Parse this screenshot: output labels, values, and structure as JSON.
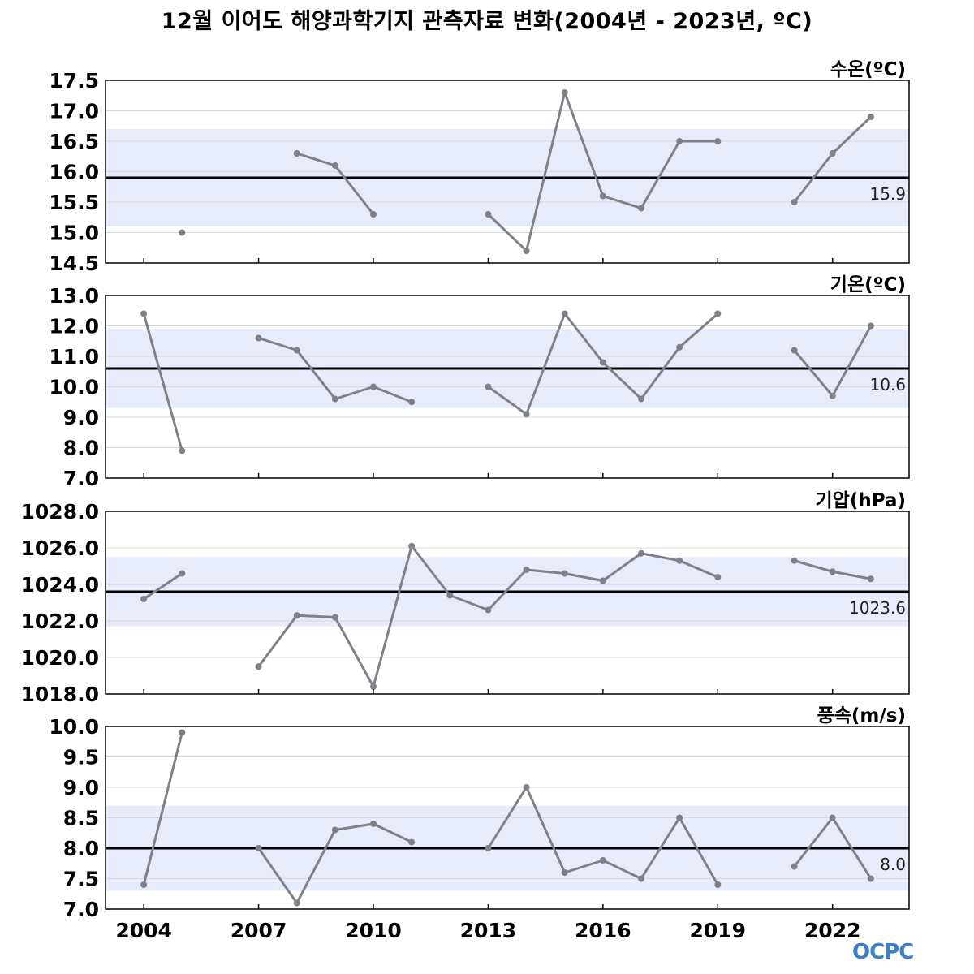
{
  "title": "12월 이어도 해양과학기지 관측자료 변화(2004년 - 2023년, ºC)",
  "logo_text": "OCPC",
  "colors": {
    "line": "#808088",
    "mean_line": "#000000",
    "band": "#e8ebfb",
    "grid": "#d8d8d8",
    "frame": "#000000"
  },
  "chart_data": [
    {
      "type": "line",
      "label": "수온(ºC)",
      "x": [
        2004,
        2005,
        2006,
        2007,
        2008,
        2009,
        2010,
        2011,
        2012,
        2013,
        2014,
        2015,
        2016,
        2017,
        2018,
        2019,
        2020,
        2021,
        2022,
        2023
      ],
      "values": [
        null,
        15.0,
        null,
        null,
        16.3,
        16.1,
        15.3,
        null,
        null,
        15.3,
        14.7,
        17.3,
        15.6,
        15.4,
        16.5,
        16.5,
        null,
        15.5,
        16.3,
        16.9
      ],
      "mean": 15.9,
      "mean_label": "15.9",
      "band": [
        15.1,
        16.7
      ],
      "ylim": [
        14.5,
        17.5
      ],
      "yticks": [
        14.5,
        15.0,
        15.5,
        16.0,
        16.5,
        17.0,
        17.5
      ],
      "ytick_labels": [
        "14.5",
        "15.0",
        "15.5",
        "16.0",
        "16.5",
        "17.0",
        "17.5"
      ]
    },
    {
      "type": "line",
      "label": "기온(ºC)",
      "x": [
        2004,
        2005,
        2006,
        2007,
        2008,
        2009,
        2010,
        2011,
        2012,
        2013,
        2014,
        2015,
        2016,
        2017,
        2018,
        2019,
        2020,
        2021,
        2022,
        2023
      ],
      "values": [
        12.4,
        7.9,
        null,
        11.6,
        11.2,
        9.6,
        10.0,
        9.5,
        null,
        10.0,
        9.1,
        12.4,
        10.8,
        9.6,
        11.3,
        12.4,
        null,
        11.2,
        9.7,
        12.0
      ],
      "mean": 10.6,
      "mean_label": "10.6",
      "band": [
        9.3,
        11.9
      ],
      "ylim": [
        7.0,
        13.0
      ],
      "yticks": [
        7,
        8,
        9,
        10,
        11,
        12,
        13
      ],
      "ytick_labels": [
        "7.0",
        "8.0",
        "9.0",
        "10.0",
        "11.0",
        "12.0",
        "13.0"
      ]
    },
    {
      "type": "line",
      "label": "기압(hPa)",
      "x": [
        2004,
        2005,
        2006,
        2007,
        2008,
        2009,
        2010,
        2011,
        2012,
        2013,
        2014,
        2015,
        2016,
        2017,
        2018,
        2019,
        2020,
        2021,
        2022,
        2023
      ],
      "values": [
        1023.2,
        1024.6,
        null,
        1019.5,
        1022.3,
        1022.2,
        1018.4,
        1026.1,
        1023.4,
        1022.6,
        1024.8,
        1024.6,
        1024.2,
        1025.7,
        1025.3,
        1024.4,
        null,
        1025.3,
        1024.7,
        1024.3
      ],
      "mean": 1023.6,
      "mean_label": "1023.6",
      "band": [
        1021.7,
        1025.5
      ],
      "ylim": [
        1018.0,
        1028.0
      ],
      "yticks": [
        1018,
        1020,
        1022,
        1024,
        1026,
        1028
      ],
      "ytick_labels": [
        "1018.0",
        "1020.0",
        "1022.0",
        "1024.0",
        "1026.0",
        "1028.0"
      ]
    },
    {
      "type": "line",
      "label": "풍속(m/s)",
      "x": [
        2004,
        2005,
        2006,
        2007,
        2008,
        2009,
        2010,
        2011,
        2012,
        2013,
        2014,
        2015,
        2016,
        2017,
        2018,
        2019,
        2020,
        2021,
        2022,
        2023
      ],
      "values": [
        7.4,
        9.9,
        null,
        8.0,
        7.1,
        8.3,
        8.4,
        8.1,
        null,
        8.0,
        9.0,
        7.6,
        7.8,
        7.5,
        8.5,
        7.4,
        null,
        7.7,
        8.5,
        7.5
      ],
      "mean": 8.0,
      "mean_label": "8.0",
      "band": [
        7.3,
        8.7
      ],
      "ylim": [
        7.0,
        10.0
      ],
      "yticks": [
        7.0,
        7.5,
        8.0,
        8.5,
        9.0,
        9.5,
        10.0
      ],
      "ytick_labels": [
        "7.0",
        "7.5",
        "8.0",
        "8.5",
        "9.0",
        "9.5",
        "10.0"
      ]
    }
  ],
  "x_axis": {
    "ticks": [
      2004,
      2007,
      2010,
      2013,
      2016,
      2019,
      2022
    ],
    "tick_labels": [
      "2004",
      "2007",
      "2010",
      "2013",
      "2016",
      "2019",
      "2022"
    ],
    "minor_ticks": [
      2004,
      2007,
      2010,
      2013,
      2016,
      2019,
      2022
    ],
    "range": [
      2003,
      2024
    ]
  }
}
